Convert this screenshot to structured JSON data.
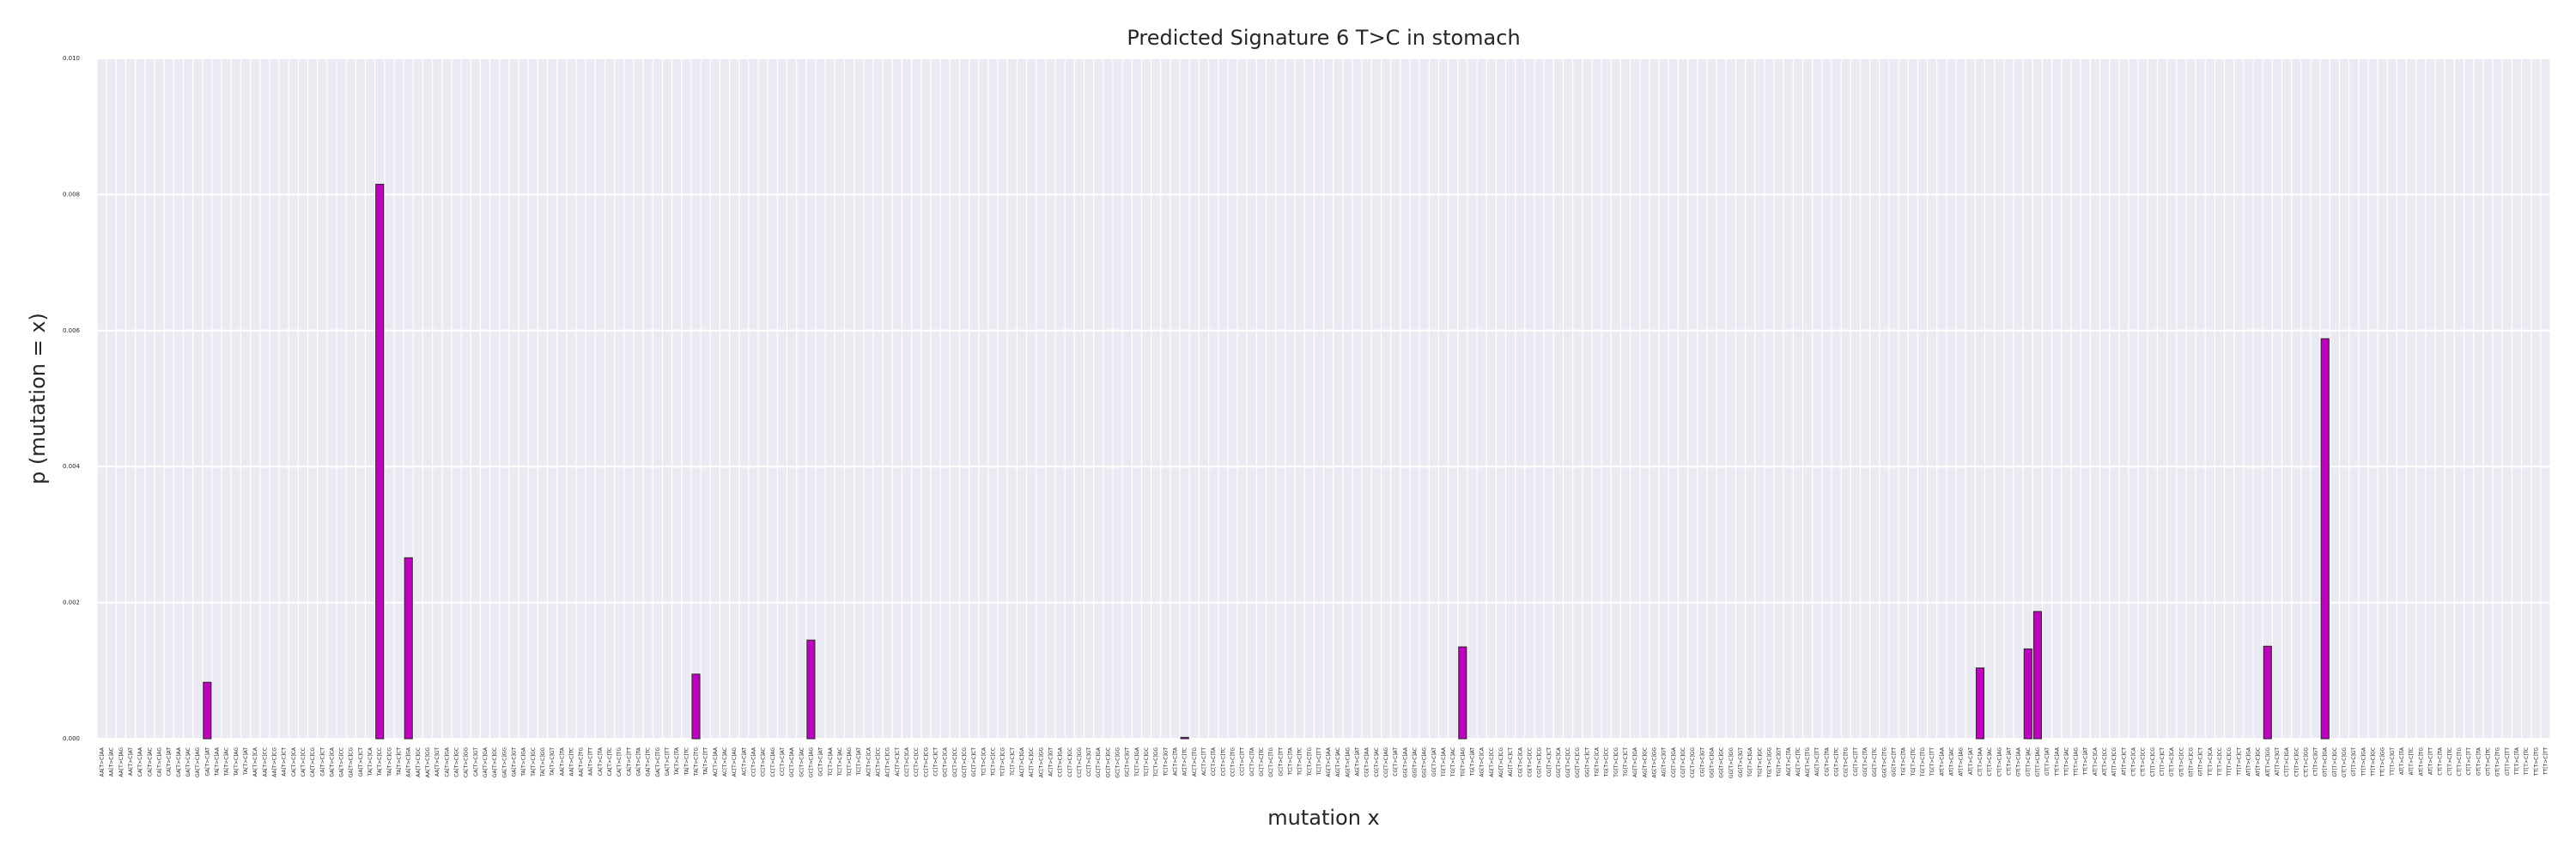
{
  "chart_data": {
    "type": "bar",
    "title": "Predicted Signature 6 T>C in stomach",
    "xlabel": "mutation x",
    "ylabel": "p (mutation = x)",
    "ylim": [
      0,
      0.01
    ],
    "yticks": [
      "0.000",
      "0.002",
      "0.004",
      "0.006",
      "0.008",
      "0.010"
    ],
    "grid": true,
    "bar_color": "#bf00bf",
    "bar_edge_color": "#262626",
    "background_color": "#eaeaf2",
    "categories": [
      "AA[T>C]AA",
      "AA[T>C]AC",
      "AA[T>C]AG",
      "AA[T>C]AT",
      "CA[T>C]AA",
      "CA[T>C]AC",
      "CA[T>C]AG",
      "CA[T>C]AT",
      "GA[T>C]AA",
      "GA[T>C]AC",
      "GA[T>C]AG",
      "GA[T>C]AT",
      "TA[T>C]AA",
      "TA[T>C]AC",
      "TA[T>C]AG",
      "TA[T>C]AT",
      "AA[T>C]CA",
      "AA[T>C]CC",
      "AA[T>C]CG",
      "AA[T>C]CT",
      "CA[T>C]CA",
      "CA[T>C]CC",
      "CA[T>C]CG",
      "CA[T>C]CT",
      "GA[T>C]CA",
      "GA[T>C]CC",
      "GA[T>C]CG",
      "GA[T>C]CT",
      "TA[T>C]CA",
      "TA[T>C]CC",
      "TA[T>C]CG",
      "TA[T>C]CT",
      "AA[T>C]GA",
      "AA[T>C]GC",
      "AA[T>C]GG",
      "AA[T>C]GT",
      "CA[T>C]GA",
      "CA[T>C]GC",
      "CA[T>C]GG",
      "CA[T>C]GT",
      "GA[T>C]GA",
      "GA[T>C]GC",
      "GA[T>C]GG",
      "GA[T>C]GT",
      "TA[T>C]GA",
      "TA[T>C]GC",
      "TA[T>C]GG",
      "TA[T>C]GT",
      "AA[T>C]TA",
      "AA[T>C]TC",
      "AA[T>C]TG",
      "AA[T>C]TT",
      "CA[T>C]TA",
      "CA[T>C]TC",
      "CA[T>C]TG",
      "CA[T>C]TT",
      "GA[T>C]TA",
      "GA[T>C]TC",
      "GA[T>C]TG",
      "GA[T>C]TT",
      "TA[T>C]TA",
      "TA[T>C]TC",
      "TA[T>C]TG",
      "TA[T>C]TT",
      "AC[T>C]AA",
      "AC[T>C]AC",
      "AC[T>C]AG",
      "AC[T>C]AT",
      "CC[T>C]AA",
      "CC[T>C]AC",
      "CC[T>C]AG",
      "CC[T>C]AT",
      "GC[T>C]AA",
      "GC[T>C]AC",
      "GC[T>C]AG",
      "GC[T>C]AT",
      "TC[T>C]AA",
      "TC[T>C]AC",
      "TC[T>C]AG",
      "TC[T>C]AT",
      "AC[T>C]CA",
      "AC[T>C]CC",
      "AC[T>C]CG",
      "AC[T>C]CT",
      "CC[T>C]CA",
      "CC[T>C]CC",
      "CC[T>C]CG",
      "CC[T>C]CT",
      "GC[T>C]CA",
      "GC[T>C]CC",
      "GC[T>C]CG",
      "GC[T>C]CT",
      "TC[T>C]CA",
      "TC[T>C]CC",
      "TC[T>C]CG",
      "TC[T>C]CT",
      "AC[T>C]GA",
      "AC[T>C]GC",
      "AC[T>C]GG",
      "AC[T>C]GT",
      "CC[T>C]GA",
      "CC[T>C]GC",
      "CC[T>C]GG",
      "CC[T>C]GT",
      "GC[T>C]GA",
      "GC[T>C]GC",
      "GC[T>C]GG",
      "GC[T>C]GT",
      "TC[T>C]GA",
      "TC[T>C]GC",
      "TC[T>C]GG",
      "TC[T>C]GT",
      "AC[T>C]TA",
      "AC[T>C]TC",
      "AC[T>C]TG",
      "AC[T>C]TT",
      "CC[T>C]TA",
      "CC[T>C]TC",
      "CC[T>C]TG",
      "CC[T>C]TT",
      "GC[T>C]TA",
      "GC[T>C]TC",
      "GC[T>C]TG",
      "GC[T>C]TT",
      "TC[T>C]TA",
      "TC[T>C]TC",
      "TC[T>C]TG",
      "TC[T>C]TT",
      "AG[T>C]AA",
      "AG[T>C]AC",
      "AG[T>C]AG",
      "AG[T>C]AT",
      "CG[T>C]AA",
      "CG[T>C]AC",
      "CG[T>C]AG",
      "CG[T>C]AT",
      "GG[T>C]AA",
      "GG[T>C]AC",
      "GG[T>C]AG",
      "GG[T>C]AT",
      "TG[T>C]AA",
      "TG[T>C]AC",
      "TG[T>C]AG",
      "TG[T>C]AT",
      "AG[T>C]CA",
      "AG[T>C]CC",
      "AG[T>C]CG",
      "AG[T>C]CT",
      "CG[T>C]CA",
      "CG[T>C]CC",
      "CG[T>C]CG",
      "CG[T>C]CT",
      "GG[T>C]CA",
      "GG[T>C]CC",
      "GG[T>C]CG",
      "GG[T>C]CT",
      "TG[T>C]CA",
      "TG[T>C]CC",
      "TG[T>C]CG",
      "TG[T>C]CT",
      "AG[T>C]GA",
      "AG[T>C]GC",
      "AG[T>C]GG",
      "AG[T>C]GT",
      "CG[T>C]GA",
      "CG[T>C]GC",
      "CG[T>C]GG",
      "CG[T>C]GT",
      "GG[T>C]GA",
      "GG[T>C]GC",
      "GG[T>C]GG",
      "GG[T>C]GT",
      "TG[T>C]GA",
      "TG[T>C]GC",
      "TG[T>C]GG",
      "TG[T>C]GT",
      "AG[T>C]TA",
      "AG[T>C]TC",
      "AG[T>C]TG",
      "AG[T>C]TT",
      "CG[T>C]TA",
      "CG[T>C]TC",
      "CG[T>C]TG",
      "CG[T>C]TT",
      "GG[T>C]TA",
      "GG[T>C]TC",
      "GG[T>C]TG",
      "GG[T>C]TT",
      "TG[T>C]TA",
      "TG[T>C]TC",
      "TG[T>C]TG",
      "TG[T>C]TT",
      "AT[T>C]AA",
      "AT[T>C]AC",
      "AT[T>C]AG",
      "AT[T>C]AT",
      "CT[T>C]AA",
      "CT[T>C]AC",
      "CT[T>C]AG",
      "CT[T>C]AT",
      "GT[T>C]AA",
      "GT[T>C]AC",
      "GT[T>C]AG",
      "GT[T>C]AT",
      "TT[T>C]AA",
      "TT[T>C]AC",
      "TT[T>C]AG",
      "TT[T>C]AT",
      "AT[T>C]CA",
      "AT[T>C]CC",
      "AT[T>C]CG",
      "AT[T>C]CT",
      "CT[T>C]CA",
      "CT[T>C]CC",
      "CT[T>C]CG",
      "CT[T>C]CT",
      "GT[T>C]CA",
      "GT[T>C]CC",
      "GT[T>C]CG",
      "GT[T>C]CT",
      "TT[T>C]CA",
      "TT[T>C]CC",
      "TT[T>C]CG",
      "TT[T>C]CT",
      "AT[T>C]GA",
      "AT[T>C]GC",
      "AT[T>C]GG",
      "AT[T>C]GT",
      "CT[T>C]GA",
      "CT[T>C]GC",
      "CT[T>C]GG",
      "CT[T>C]GT",
      "GT[T>C]GA",
      "GT[T>C]GC",
      "GT[T>C]GG",
      "GT[T>C]GT",
      "TT[T>C]GA",
      "TT[T>C]GC",
      "TT[T>C]GG",
      "TT[T>C]GT",
      "AT[T>C]TA",
      "AT[T>C]TC",
      "AT[T>C]TG",
      "AT[T>C]TT",
      "CT[T>C]TA",
      "CT[T>C]TC",
      "CT[T>C]TG",
      "CT[T>C]TT",
      "GT[T>C]TA",
      "GT[T>C]TC",
      "GT[T>C]TG",
      "GT[T>C]TT",
      "TT[T>C]TA",
      "TT[T>C]TC",
      "TT[T>C]TG",
      "TT[T>C]TT"
    ],
    "values": [
      0,
      0,
      0,
      0,
      0,
      0,
      0,
      0,
      0,
      0,
      0,
      0.00083,
      0,
      0,
      0,
      0,
      0,
      0,
      0,
      0,
      0,
      0,
      0,
      0,
      0,
      0,
      0,
      0,
      0,
      0.00815,
      0,
      0,
      0.00266,
      0,
      0,
      0,
      0,
      0,
      0,
      0,
      0,
      0,
      0,
      0,
      0,
      0,
      0,
      0,
      0,
      0,
      0,
      0,
      0,
      0,
      0,
      0,
      0,
      0,
      0,
      0,
      0,
      0,
      0.00095,
      0,
      0,
      0,
      0,
      0,
      0,
      0,
      0,
      0,
      0,
      0,
      0.00145,
      0,
      0,
      0,
      0,
      0,
      0,
      0,
      0,
      0,
      0,
      0,
      0,
      0,
      0,
      0,
      0,
      0,
      0,
      0,
      0,
      0,
      0,
      0,
      0,
      0,
      0,
      0,
      0,
      0,
      0,
      0,
      0,
      0,
      0,
      0,
      0,
      0,
      0,
      2e-05,
      0,
      0,
      0,
      0,
      0,
      0,
      0,
      0,
      0,
      0,
      0,
      0,
      0,
      0,
      0,
      0,
      0,
      0,
      0,
      0,
      0,
      0,
      0,
      0,
      0,
      0,
      0,
      0,
      0.00135,
      0,
      0,
      0,
      0,
      0,
      0,
      0,
      0,
      0,
      0,
      0,
      0,
      0,
      0,
      0,
      0,
      0,
      0,
      0,
      0,
      0,
      0,
      0,
      0,
      0,
      0,
      0,
      0,
      0,
      0,
      0,
      0,
      0,
      0,
      0,
      0,
      0,
      0,
      0,
      0,
      0,
      0,
      0,
      0,
      0,
      0,
      0,
      0,
      0,
      0,
      0,
      0,
      0,
      0.00104,
      0,
      0,
      0,
      0,
      0.00132,
      0.00187,
      0,
      0,
      0,
      0,
      0,
      0,
      0,
      0,
      0,
      0,
      0,
      0,
      0,
      0,
      0,
      0,
      0,
      0,
      0,
      0,
      0,
      0,
      0,
      0.00136,
      0,
      0,
      0,
      0,
      0,
      0.00588,
      0,
      0,
      0,
      0,
      0,
      0,
      0,
      0,
      0,
      0,
      0,
      0,
      0,
      0,
      0,
      0,
      0,
      0,
      0,
      0,
      0,
      0,
      0
    ]
  }
}
